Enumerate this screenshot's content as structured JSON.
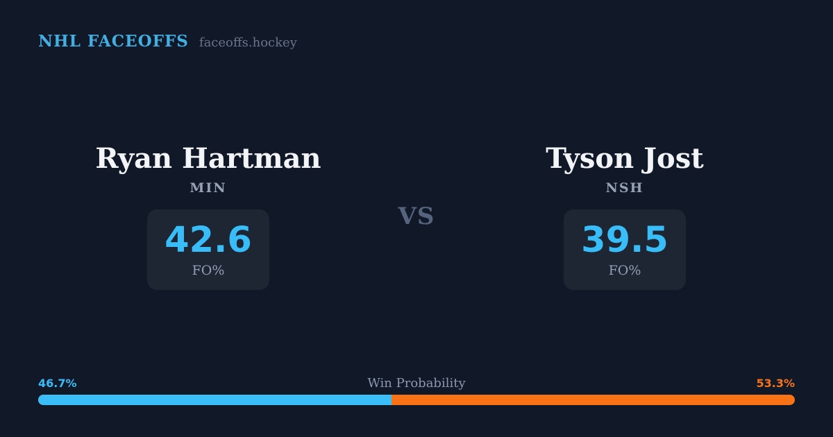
{
  "header": {
    "brand": "NHL FACEOFFS",
    "site": "faceoffs.hockey"
  },
  "matchup": {
    "vs_label": "VS",
    "left": {
      "name": "Ryan Hartman",
      "team": "MIN",
      "stat_value": "42.6",
      "stat_label": "FO%"
    },
    "right": {
      "name": "Tyson Jost",
      "team": "NSH",
      "stat_value": "39.5",
      "stat_label": "FO%"
    }
  },
  "win_probability": {
    "title": "Win Probability",
    "left_label": "46.7%",
    "right_label": "53.3%",
    "left_value": 46.7,
    "right_value": 53.3
  },
  "chart_data": {
    "type": "bar",
    "title": "Win Probability",
    "categories": [
      "Ryan Hartman (MIN)",
      "Tyson Jost (NSH)"
    ],
    "values": [
      46.7,
      53.3
    ],
    "colors": [
      "#3bbdf8",
      "#f97316"
    ],
    "orientation": "horizontal-stacked",
    "related_stats": {
      "FO%": [
        42.6,
        39.5
      ]
    }
  },
  "colors": {
    "background": "#111928",
    "stat_card": "#1e2634",
    "accent_blue": "#38bdf8",
    "accent_orange": "#f97316",
    "brand_blue": "#41afe2",
    "muted_text": "#93a0b4",
    "vs_text": "#56637c"
  }
}
